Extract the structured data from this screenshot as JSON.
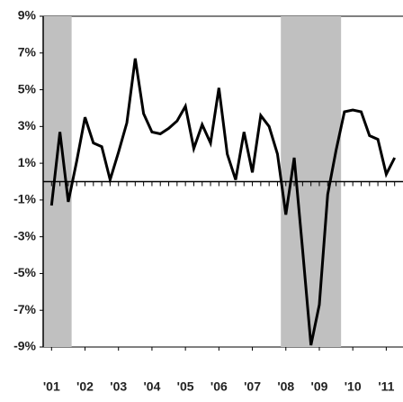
{
  "chart_data": {
    "type": "line",
    "x": [
      2001,
      2001.25,
      2001.5,
      2001.75,
      2002,
      2002.25,
      2002.5,
      2002.75,
      2003,
      2003.25,
      2003.5,
      2003.75,
      2004,
      2004.25,
      2004.5,
      2004.75,
      2005,
      2005.25,
      2005.5,
      2005.75,
      2006,
      2006.25,
      2006.5,
      2006.75,
      2007,
      2007.25,
      2007.5,
      2007.75,
      2008,
      2008.25,
      2008.5,
      2008.75,
      2009,
      2009.25,
      2009.5,
      2009.75,
      2010,
      2010.25,
      2010.5,
      2010.75,
      2011,
      2011.25
    ],
    "series": [
      {
        "color": "#000000",
        "values": [
          -1.3,
          2.7,
          -1.1,
          1.1,
          3.5,
          2.1,
          1.9,
          0.1,
          1.6,
          3.2,
          6.7,
          3.7,
          2.7,
          2.6,
          2.9,
          3.3,
          4.1,
          1.8,
          3.1,
          2.1,
          5.1,
          1.5,
          0.1,
          2.7,
          0.5,
          3.6,
          3.0,
          1.5,
          -1.8,
          1.3,
          -3.7,
          -8.9,
          -6.7,
          -0.7,
          1.7,
          3.8,
          3.9,
          3.8,
          2.5,
          2.3,
          0.4,
          1.3
        ]
      }
    ],
    "shaded_periods": [
      {
        "start": 2000.75,
        "end": 2001.6
      },
      {
        "start": 2007.85,
        "end": 2009.65
      }
    ],
    "shade_color": "#c0c0c0",
    "xlim": [
      2000.75,
      2011.5
    ],
    "xticks": [
      {
        "value": 2001,
        "label": "'01"
      },
      {
        "value": 2002,
        "label": "'02"
      },
      {
        "value": 2003,
        "label": "'03"
      },
      {
        "value": 2004,
        "label": "'04"
      },
      {
        "value": 2005,
        "label": "'05"
      },
      {
        "value": 2006,
        "label": "'06"
      },
      {
        "value": 2007,
        "label": "'07"
      },
      {
        "value": 2008,
        "label": "'08"
      },
      {
        "value": 2009,
        "label": "'09"
      },
      {
        "value": 2010,
        "label": "'10"
      },
      {
        "value": 2011,
        "label": "'11"
      }
    ],
    "ylim": [
      -9,
      9
    ],
    "yticks": [
      {
        "value": -9,
        "label": "-9%"
      },
      {
        "value": -7,
        "label": "-7%"
      },
      {
        "value": -5,
        "label": "-5%"
      },
      {
        "value": -3,
        "label": "-3%"
      },
      {
        "value": -1,
        "label": "-1%"
      },
      {
        "value": 1,
        "label": "1%"
      },
      {
        "value": 3,
        "label": "3%"
      },
      {
        "value": 5,
        "label": "5%"
      },
      {
        "value": 7,
        "label": "7%"
      },
      {
        "value": 9,
        "label": "9%"
      }
    ]
  }
}
